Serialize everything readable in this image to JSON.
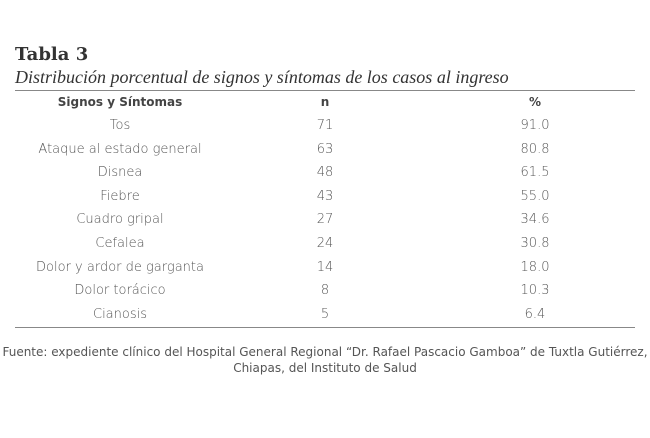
{
  "title": "Tabla 3",
  "subtitle": "Distribución porcentual de signos y síntomas de los casos al ingreso",
  "table": {
    "headers": [
      "Signos y Síntomas",
      "n",
      "%"
    ],
    "rows": [
      [
        "Tos",
        "71",
        "91.0"
      ],
      [
        "Ataque al estado general",
        "63",
        "80.8"
      ],
      [
        "Disnea",
        "48",
        "61.5"
      ],
      [
        "Fiebre",
        "43",
        "55.0"
      ],
      [
        "Cuadro gripal",
        "27",
        "34.6"
      ],
      [
        "Cefalea",
        "24",
        "30.8"
      ],
      [
        "Dolor y ardor de garganta",
        "14",
        "18.0"
      ],
      [
        "Dolor torácico",
        "8",
        "10.3"
      ],
      [
        "Cianosis",
        "5",
        "6.4"
      ]
    ]
  },
  "footer": {
    "line1": "Fuente: expediente clínico del Hospital General Regional “Dr. Rafael Pascacio Gamboa” de Tuxtla Gutiérrez,",
    "line2": "Chiapas, del Instituto de Salud"
  }
}
